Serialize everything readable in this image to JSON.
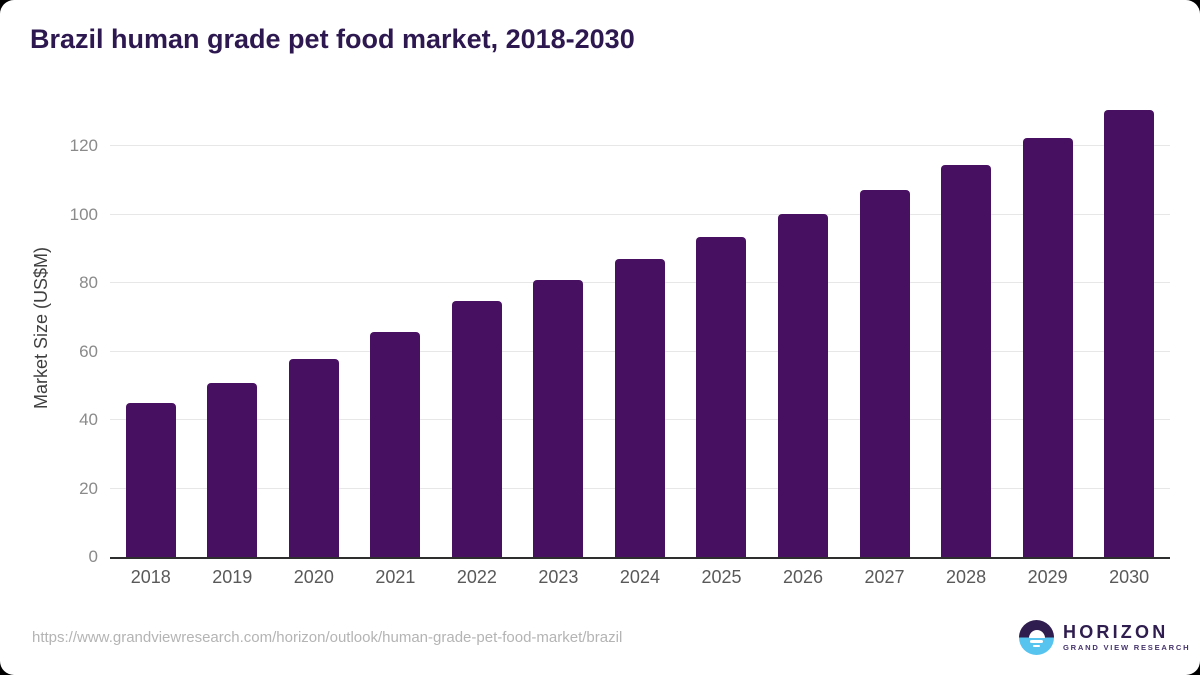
{
  "title": "Brazil human grade pet food market, 2018-2030",
  "colors": {
    "title_text": "#2d1850",
    "bar": "#481061",
    "gridline": "#e7e7e7",
    "axis_line": "#2e2e2e",
    "tick_text": "#8a8a8a",
    "logo_purple": "#2e1d4e",
    "logo_blue": "#57c4f0"
  },
  "chart_data": {
    "type": "bar",
    "title": "Brazil human grade pet food market, 2018-2030",
    "categories": [
      "2018",
      "2019",
      "2020",
      "2021",
      "2022",
      "2023",
      "2024",
      "2025",
      "2026",
      "2027",
      "2028",
      "2029",
      "2030"
    ],
    "values": [
      44.9,
      50.9,
      57.7,
      65.8,
      74.9,
      81.0,
      87.1,
      93.4,
      100.1,
      107.2,
      114.4,
      122.3,
      130.5
    ],
    "xlabel": "",
    "ylabel": "Market Size (US$M)",
    "ylim": [
      0,
      133.5
    ],
    "yticks": [
      0,
      20,
      40,
      60,
      80,
      100,
      120
    ],
    "grid": "horizontal",
    "legend_position": "none",
    "bar_color": "#481061"
  },
  "footer": {
    "source_url": "https://www.grandviewresearch.com/horizon/outlook/human-grade-pet-food-market/brazil",
    "logo": {
      "name": "HORIZON",
      "subtitle": "GRAND VIEW RESEARCH",
      "icon": "horizon-sun-circle-icon"
    }
  }
}
